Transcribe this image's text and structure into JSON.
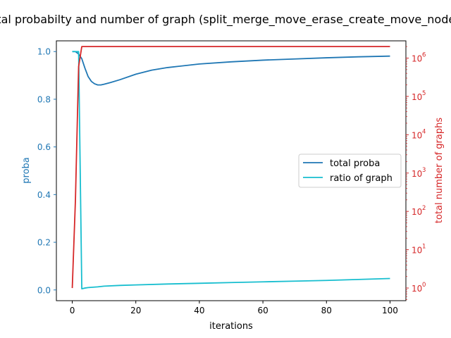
{
  "chart_data": {
    "type": "line",
    "title": "total probabilty and number of graph (split_merge_move_erase_create_move_nodes)",
    "xlabel": "iterations",
    "ylabel_left": "proba",
    "ylabel_right": "total number of graphs",
    "xlim": [
      -5,
      105
    ],
    "ylim_left": [
      -0.045,
      1.045
    ],
    "ylim_right_log10": [
      -0.33,
      6.45
    ],
    "right_scale": "log",
    "x_ticks": [
      "0",
      "20",
      "40",
      "60",
      "80",
      "100"
    ],
    "x_tick_values": [
      0,
      20,
      40,
      60,
      80,
      100
    ],
    "y_ticks_left": [
      "0.0",
      "0.2",
      "0.4",
      "0.6",
      "0.8",
      "1.0"
    ],
    "y_tick_values_left": [
      0,
      0.2,
      0.4,
      0.6,
      0.8,
      1.0
    ],
    "y_ticks_right": [
      {
        "base": "10",
        "exp": "0"
      },
      {
        "base": "10",
        "exp": "1"
      },
      {
        "base": "10",
        "exp": "2"
      },
      {
        "base": "10",
        "exp": "3"
      },
      {
        "base": "10",
        "exp": "4"
      },
      {
        "base": "10",
        "exp": "5"
      },
      {
        "base": "10",
        "exp": "6"
      }
    ],
    "legend_position": "center-right",
    "colors": {
      "total_proba": "#1f77b4",
      "ratio_of_graph": "#17becf",
      "total_graphs": "#d62728",
      "left_axis": "#1f77b4",
      "right_axis": "#d62728"
    },
    "series": [
      {
        "name": "total proba",
        "axis": "left",
        "x": [
          0,
          1,
          2,
          3,
          4,
          5,
          6,
          7,
          8,
          9,
          10,
          12,
          15,
          20,
          25,
          30,
          40,
          50,
          60,
          70,
          80,
          90,
          100
        ],
        "y": [
          1.0,
          1.0,
          0.99,
          0.97,
          0.93,
          0.895,
          0.875,
          0.865,
          0.86,
          0.86,
          0.863,
          0.87,
          0.882,
          0.905,
          0.922,
          0.933,
          0.948,
          0.957,
          0.964,
          0.969,
          0.974,
          0.978,
          0.981
        ]
      },
      {
        "name": "ratio of graph",
        "axis": "left",
        "x": [
          0,
          1,
          2,
          3,
          4,
          5,
          8,
          10,
          15,
          20,
          30,
          40,
          50,
          60,
          70,
          80,
          90,
          100
        ],
        "y": [
          1.0,
          1.0,
          1.0,
          0.005,
          0.008,
          0.01,
          0.013,
          0.016,
          0.019,
          0.021,
          0.025,
          0.028,
          0.031,
          0.034,
          0.037,
          0.04,
          0.044,
          0.048
        ]
      },
      {
        "name": "",
        "axis": "right",
        "x": [
          0,
          1,
          2,
          3,
          4,
          10,
          20,
          40,
          60,
          80,
          100
        ],
        "y": [
          1,
          200,
          600000,
          2000000,
          2000000,
          2000000,
          2000000,
          2000000,
          2000000,
          2000000,
          2000000
        ]
      }
    ]
  }
}
